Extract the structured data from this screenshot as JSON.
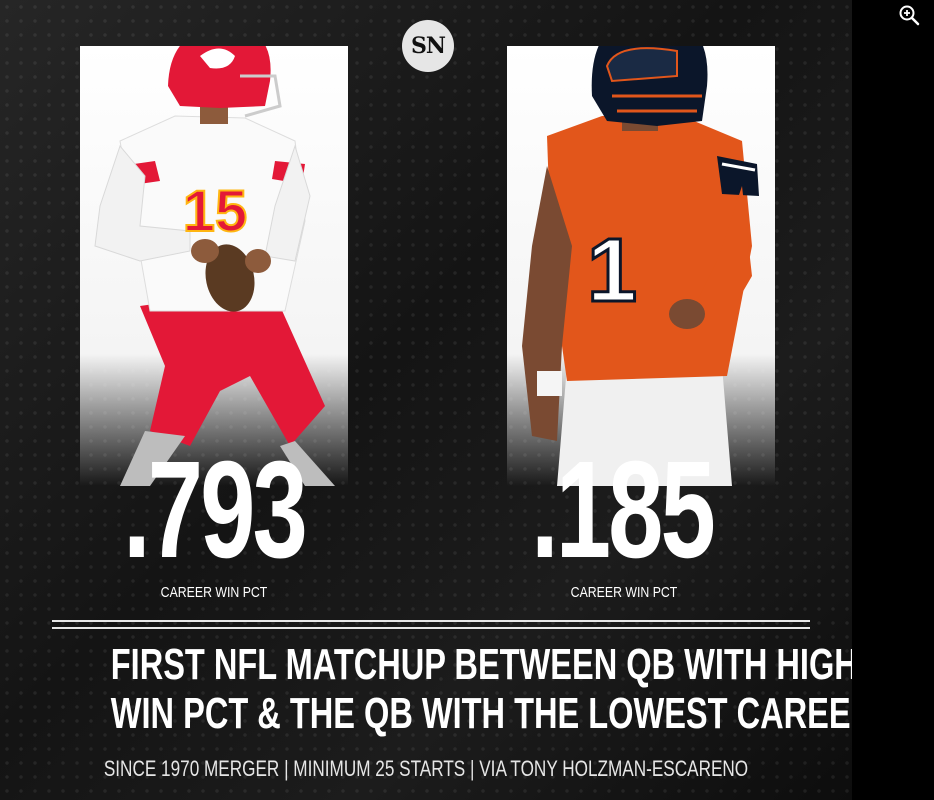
{
  "logo": {
    "text": "SN"
  },
  "left_player": {
    "stat": ".793",
    "label": "CAREER WIN PCT",
    "jersey_number": "15",
    "team_colors": {
      "primary": "#e31837",
      "jersey": "#ffffff",
      "accent": "#ffb612"
    }
  },
  "right_player": {
    "stat": ".185",
    "label": "CAREER WIN PCT",
    "jersey_number": "1",
    "team_colors": {
      "primary": "#e2561b",
      "helmet": "#0b162a",
      "accent": "#ffffff"
    }
  },
  "headline": {
    "line1": "FIRST NFL MATCHUP BETWEEN QB WITH HIGHEST CAREER",
    "line2": "WIN PCT & THE QB WITH THE LOWEST CAREER WIN PCT"
  },
  "footnote": "SINCE 1970 MERGER | MINIMUM 25 STARTS | VIA TONY HOLZMAN-ESCARENO",
  "toolbar": {
    "zoom_icon": "zoom-in-icon"
  }
}
